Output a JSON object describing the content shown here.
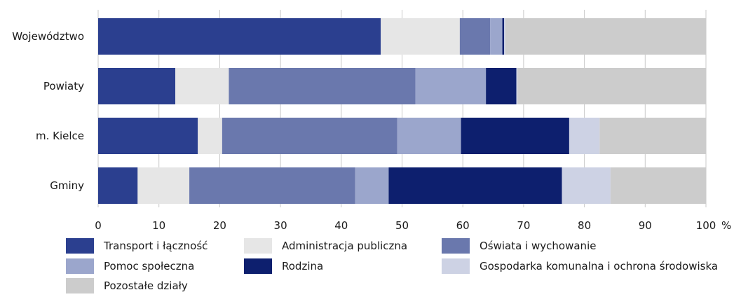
{
  "chart_data": {
    "type": "bar",
    "orientation": "horizontal",
    "stacked": true,
    "categories": [
      "Województwo",
      "Powiaty",
      "m. Kielce",
      "Gminy"
    ],
    "series": [
      {
        "name": "Transport i łączność",
        "color": "#2b3f8f",
        "values": [
          46.5,
          12.7,
          16.4,
          6.5
        ]
      },
      {
        "name": "Administracja publiczna",
        "color": "#e6e6e6",
        "values": [
          13.0,
          8.8,
          4.0,
          8.5
        ]
      },
      {
        "name": "Oświata i wychowanie",
        "color": "#6a78ad",
        "values": [
          5.0,
          30.7,
          28.8,
          27.3
        ]
      },
      {
        "name": "Pomoc społeczna",
        "color": "#9ba6cc",
        "values": [
          2.0,
          11.6,
          10.5,
          5.5
        ]
      },
      {
        "name": "Rodzina",
        "color": "#0d1f6e",
        "values": [
          0.3,
          5.0,
          17.8,
          28.5
        ]
      },
      {
        "name": "Gospodarka komunalna i ochrona środowiska",
        "color": "#cdd2e4",
        "values": [
          0.2,
          0.2,
          5.0,
          8.0
        ]
      },
      {
        "name": "Pozostałe działy",
        "color": "#cccccc",
        "values": [
          33.0,
          31.0,
          17.5,
          15.7
        ]
      }
    ],
    "x_ticks": [
      "0",
      "10",
      "20",
      "30",
      "40",
      "50",
      "60",
      "70",
      "80",
      "90",
      "100"
    ],
    "xlim": [
      0,
      100
    ],
    "x_unit": "%",
    "legend_position": "bottom",
    "grid": false
  }
}
